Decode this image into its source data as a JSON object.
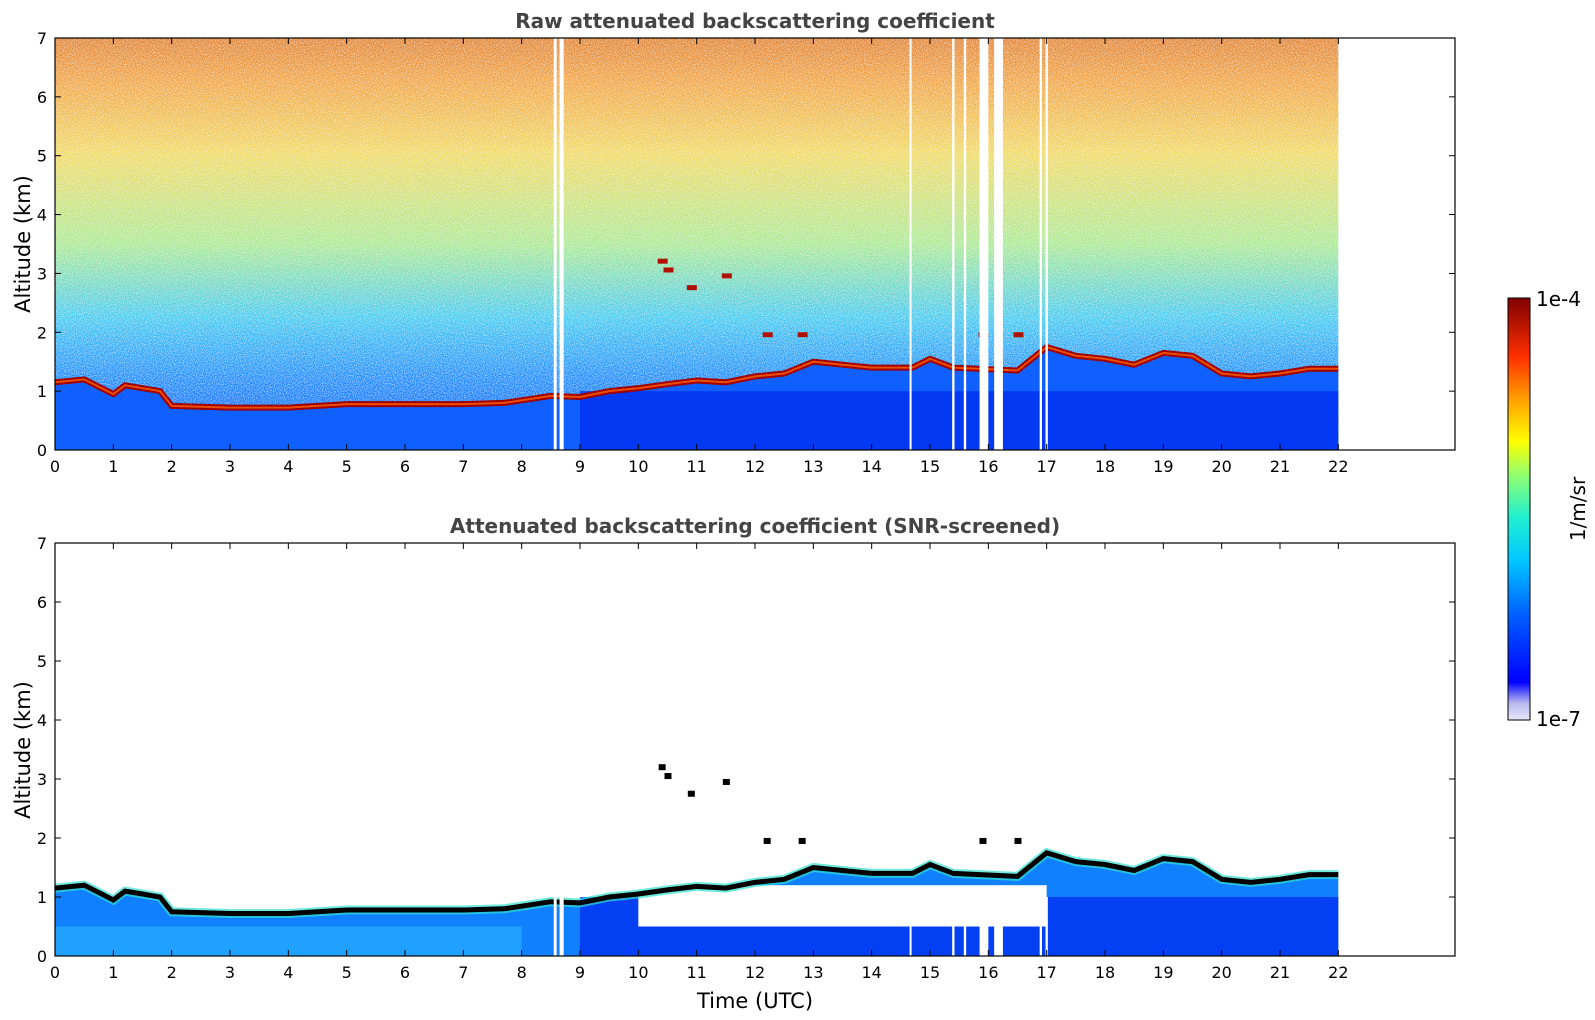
{
  "chart_data": [
    {
      "type": "heatmap",
      "title": "Raw attenuated backscattering coefficient",
      "xlabel": "",
      "ylabel": "Altitude (km)",
      "xlim": [
        0,
        24
      ],
      "ylim": [
        0,
        7
      ],
      "xticks": [
        0,
        1,
        2,
        3,
        4,
        5,
        6,
        7,
        8,
        9,
        10,
        11,
        12,
        13,
        14,
        15,
        16,
        17,
        18,
        19,
        20,
        21,
        22
      ],
      "yticks": [
        0,
        1,
        2,
        3,
        4,
        5,
        6,
        7
      ],
      "data_end_time": 22,
      "data_gaps": [
        [
          8.55,
          8.6
        ],
        [
          8.65,
          8.72
        ],
        [
          15.38,
          15.42
        ],
        [
          15.58,
          15.62
        ],
        [
          15.85,
          16.0
        ],
        [
          16.1,
          16.25
        ],
        [
          16.88,
          16.92
        ],
        [
          16.98,
          17.02
        ],
        [
          14.65,
          14.68
        ]
      ],
      "boundary_layer_top_km": [
        [
          0,
          1.15
        ],
        [
          0.5,
          1.2
        ],
        [
          0.8,
          1.05
        ],
        [
          1.0,
          0.95
        ],
        [
          1.2,
          1.1
        ],
        [
          1.5,
          1.05
        ],
        [
          1.8,
          1.0
        ],
        [
          2.0,
          0.75
        ],
        [
          3.0,
          0.72
        ],
        [
          4.0,
          0.72
        ],
        [
          5.0,
          0.78
        ],
        [
          6.0,
          0.78
        ],
        [
          7.0,
          0.78
        ],
        [
          7.7,
          0.8
        ],
        [
          8.5,
          0.92
        ],
        [
          9.0,
          0.9
        ],
        [
          9.5,
          1.0
        ],
        [
          10.0,
          1.05
        ],
        [
          10.5,
          1.12
        ],
        [
          11.0,
          1.18
        ],
        [
          11.5,
          1.15
        ],
        [
          12.0,
          1.25
        ],
        [
          12.5,
          1.3
        ],
        [
          13.0,
          1.5
        ],
        [
          13.5,
          1.45
        ],
        [
          14.0,
          1.4
        ],
        [
          14.7,
          1.4
        ],
        [
          15.0,
          1.55
        ],
        [
          15.4,
          1.4
        ],
        [
          16.5,
          1.35
        ],
        [
          17.0,
          1.75
        ],
        [
          17.5,
          1.6
        ],
        [
          18.0,
          1.55
        ],
        [
          18.5,
          1.45
        ],
        [
          19.0,
          1.65
        ],
        [
          19.5,
          1.6
        ],
        [
          20.0,
          1.3
        ],
        [
          20.5,
          1.25
        ],
        [
          21.0,
          1.3
        ],
        [
          21.5,
          1.38
        ],
        [
          22.0,
          1.38
        ]
      ],
      "elevated_layers": [
        {
          "t": 10.4,
          "alt": 3.2
        },
        {
          "t": 10.5,
          "alt": 3.05
        },
        {
          "t": 10.9,
          "alt": 2.75
        },
        {
          "t": 11.5,
          "alt": 2.95
        },
        {
          "t": 12.2,
          "alt": 1.95
        },
        {
          "t": 12.8,
          "alt": 1.95
        },
        {
          "t": 15.9,
          "alt": 1.95
        },
        {
          "t": 16.5,
          "alt": 1.95
        }
      ]
    },
    {
      "type": "heatmap",
      "title": "Attenuated backscattering coefficient (SNR-screened)",
      "xlabel": "Time (UTC)",
      "ylabel": "Altitude (km)",
      "xlim": [
        0,
        24
      ],
      "ylim": [
        0,
        7
      ],
      "xticks": [
        0,
        1,
        2,
        3,
        4,
        5,
        6,
        7,
        8,
        9,
        10,
        11,
        12,
        13,
        14,
        15,
        16,
        17,
        18,
        19,
        20,
        21,
        22
      ],
      "yticks": [
        0,
        1,
        2,
        3,
        4,
        5,
        6,
        7
      ],
      "data_end_time": 22,
      "screened_regions": [
        [
          10.0,
          17.0,
          0.5,
          1.2
        ]
      ]
    }
  ],
  "colorbar": {
    "label": "1/m/sr",
    "max_label": "1e-4",
    "min_label": "1e-7",
    "scale": "log",
    "colormap": "jet",
    "colors": [
      "#e8e8f8",
      "#c8c8f0",
      "#9090f0",
      "#0000ff",
      "#0040ff",
      "#0080ff",
      "#00c0ff",
      "#00e8e8",
      "#40ffc0",
      "#80ff80",
      "#c0ff40",
      "#ffff00",
      "#ffc000",
      "#ff8000",
      "#ff4000",
      "#e00000",
      "#800000"
    ]
  }
}
